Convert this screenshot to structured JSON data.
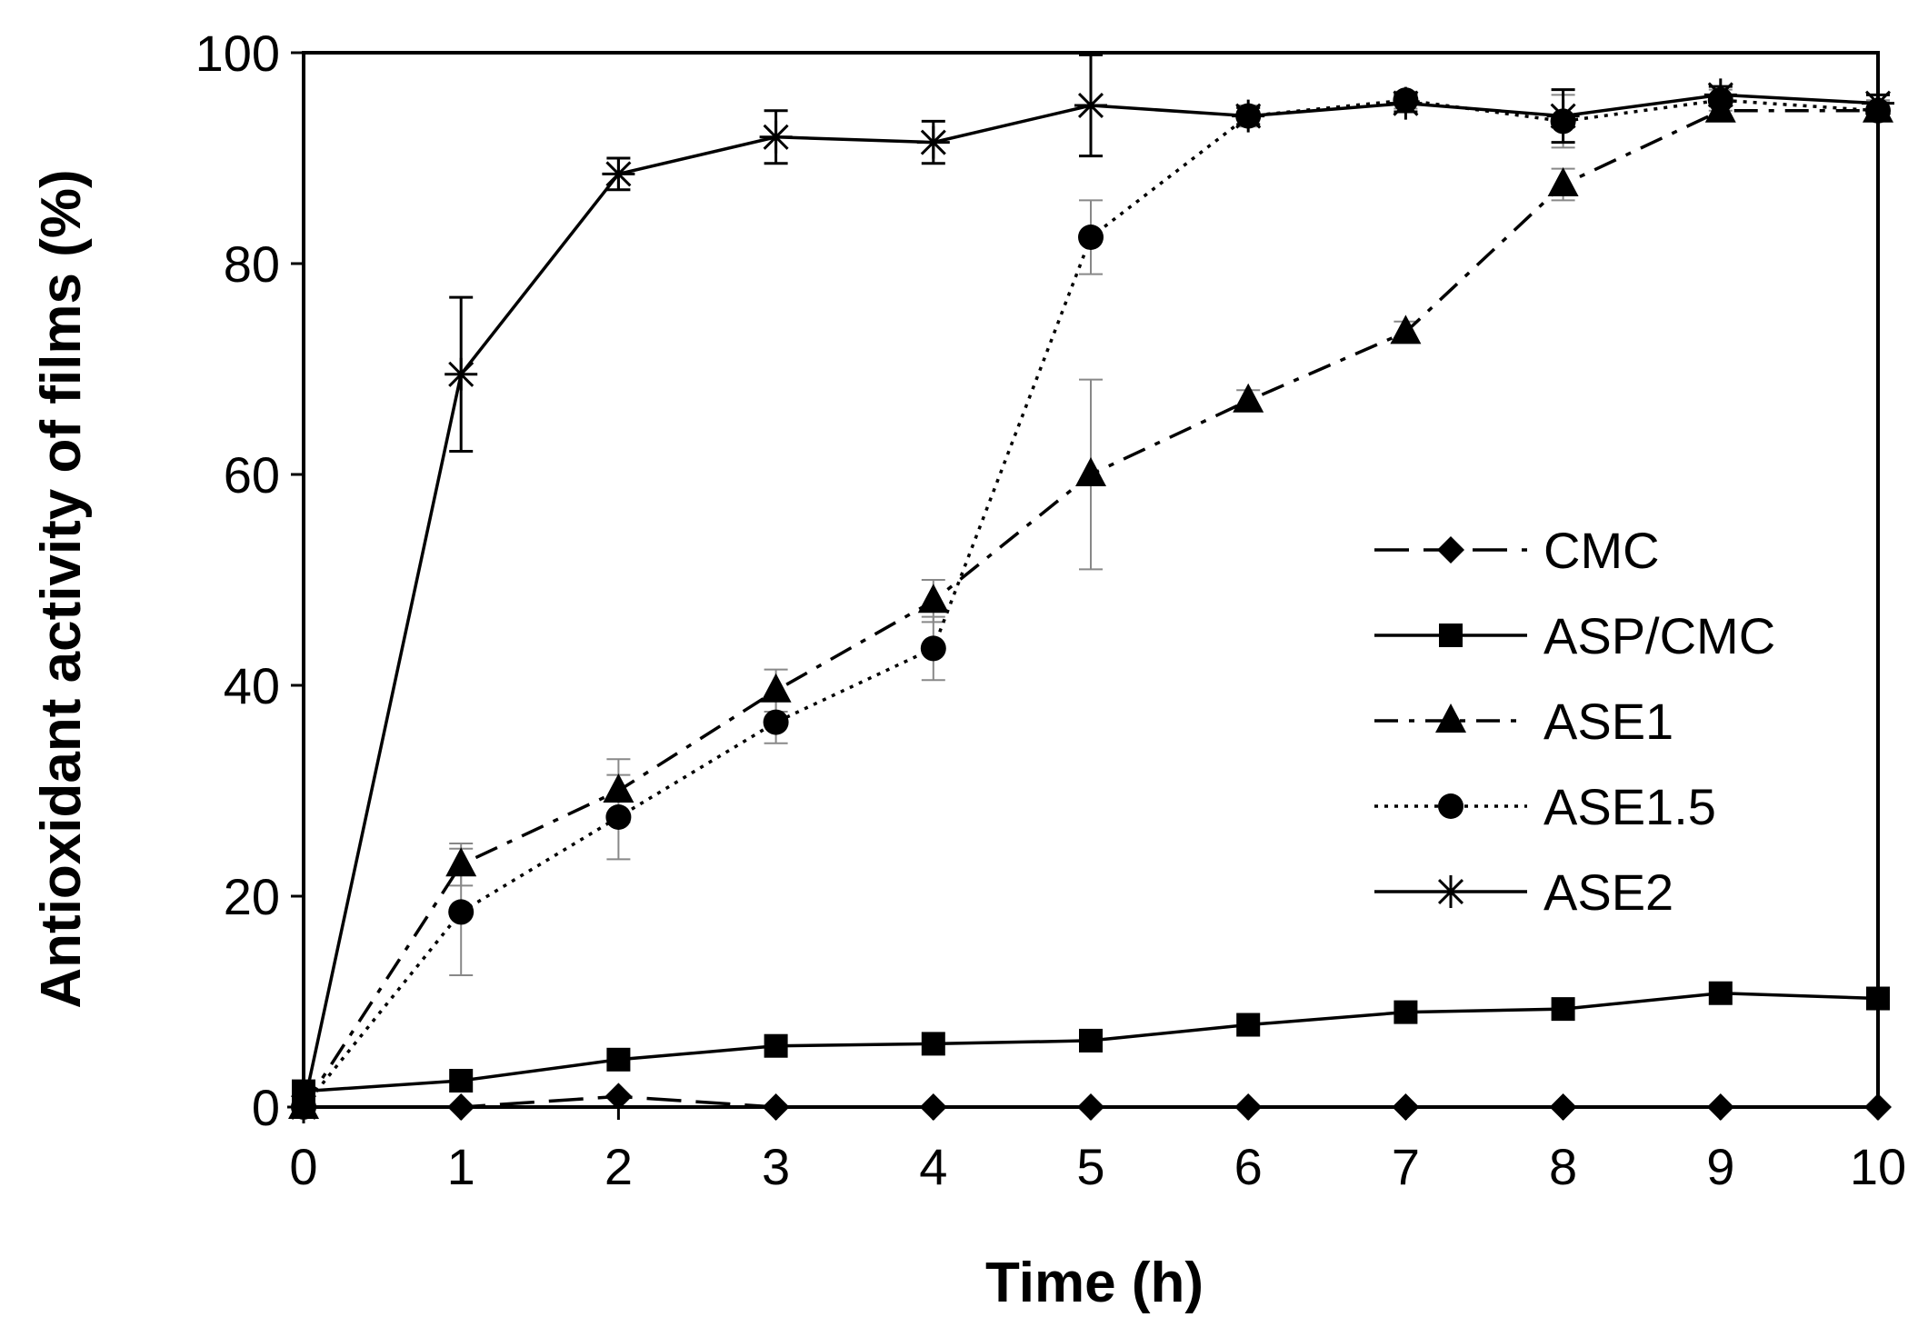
{
  "chart_data": {
    "type": "line",
    "title": "",
    "xlabel": "Time (h)",
    "ylabel": "Antioxidant activity of films (%)",
    "xlim": [
      0,
      10
    ],
    "ylim": [
      0,
      100
    ],
    "xticks": [
      "0",
      "1",
      "2",
      "3",
      "4",
      "5",
      "6",
      "7",
      "8",
      "9",
      "10"
    ],
    "yticks": [
      "0",
      "20",
      "40",
      "60",
      "80",
      "100"
    ],
    "legend_position": "center-right",
    "grid": false,
    "x": [
      0,
      1,
      2,
      3,
      4,
      5,
      6,
      7,
      8,
      9,
      10
    ],
    "series": [
      {
        "name": "CMC",
        "marker": "diamond",
        "line_style": "long-dash",
        "values": [
          0,
          0,
          1,
          0,
          0,
          0,
          0,
          0,
          0,
          0,
          0
        ],
        "errors": [
          0,
          0,
          0,
          0,
          0,
          0,
          0,
          0,
          0,
          0,
          0
        ]
      },
      {
        "name": "ASP/CMC",
        "marker": "square",
        "line_style": "solid",
        "values": [
          1.5,
          2.5,
          4.5,
          5.8,
          6.0,
          6.3,
          7.8,
          9.0,
          9.3,
          10.8,
          10.3
        ],
        "errors": [
          0,
          0,
          0,
          0,
          0,
          0,
          0,
          0,
          0,
          0,
          0
        ]
      },
      {
        "name": "ASE1",
        "marker": "triangle",
        "line_style": "dash-dot",
        "values": [
          0,
          23,
          30,
          39.5,
          48,
          60,
          67,
          73.5,
          87.5,
          94.5,
          94.5
        ],
        "errors": [
          0,
          2,
          3,
          2,
          2,
          9,
          1,
          1,
          1.5,
          1,
          0.8
        ]
      },
      {
        "name": "ASE1.5",
        "marker": "circle",
        "line_style": "dotted",
        "values": [
          0,
          18.5,
          27.5,
          36.5,
          43.5,
          82.5,
          94,
          95.5,
          93.5,
          95.5,
          94.5
        ],
        "errors": [
          0,
          6,
          4,
          2,
          3,
          3.5,
          1,
          0.8,
          2.5,
          1,
          1
        ]
      },
      {
        "name": "ASE2",
        "marker": "asterisk",
        "line_style": "solid",
        "values": [
          0,
          69.5,
          88.5,
          92,
          91.5,
          95,
          94,
          95.2,
          94,
          96,
          95.2
        ],
        "errors": [
          0,
          7.3,
          1.5,
          2.5,
          2,
          4.8,
          0.8,
          0.8,
          2.5,
          0.8,
          0.8
        ]
      }
    ]
  }
}
